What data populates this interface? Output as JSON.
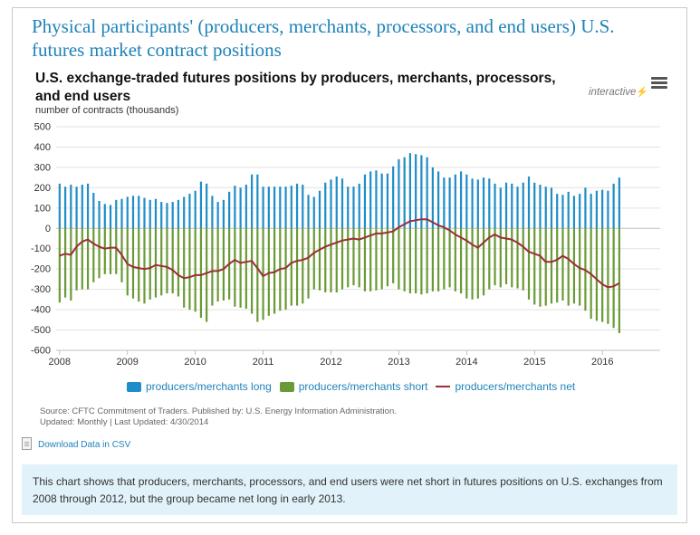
{
  "page": {
    "title": "Physical participants' (producers, merchants, processors, and end users) U.S. futures market contract positions",
    "interactive_label": "interactive",
    "download_label": "Download Data in CSV",
    "source_line1": "Source: CFTC Commitment of Traders. Published by: U.S. Energy Information Administration.",
    "source_line2": "Updated: Monthly | Last Updated: 4/30/2014",
    "caption": "This chart shows that producers, merchants, processors, and end users were net short in futures positions on U.S. exchanges from 2008 through 2012, but the group became net long in early 2013."
  },
  "icons": {
    "menu": "hamburger-menu-icon",
    "bolt": "lightning-bolt-icon",
    "download": "document-icon"
  },
  "colors": {
    "title": "#1f82b9",
    "long": "#1f8dc7",
    "short": "#6a9a36",
    "net": "#9b2f34",
    "caption_bg": "#e2f2fa"
  },
  "chart_data": {
    "type": "bar",
    "title": "U.S. exchange-traded futures positions by producers, merchants, processors, and end users",
    "subtitle": "number of contracts (thousands)",
    "ylim": [
      -600,
      500
    ],
    "yticks": [
      500,
      400,
      300,
      200,
      100,
      0,
      -100,
      -200,
      -300,
      -400,
      -500,
      -600
    ],
    "xlim": [
      2007.95,
      2016.85
    ],
    "xticks": [
      2008,
      2009,
      2010,
      2011,
      2012,
      2013,
      2014,
      2015,
      2016
    ],
    "grid": true,
    "legend_position": "bottom",
    "start_year": 2008,
    "step_years": 0.0833,
    "series": [
      {
        "name": "producers/merchants long",
        "type": "bar",
        "values": [
          220,
          205,
          215,
          205,
          215,
          220,
          175,
          135,
          120,
          115,
          140,
          145,
          155,
          160,
          160,
          150,
          140,
          145,
          130,
          125,
          130,
          140,
          155,
          170,
          185,
          230,
          220,
          160,
          130,
          140,
          180,
          210,
          200,
          215,
          265,
          265,
          205,
          205,
          205,
          205,
          205,
          210,
          220,
          215,
          165,
          155,
          185,
          225,
          240,
          255,
          245,
          205,
          205,
          220,
          265,
          280,
          285,
          270,
          270,
          305,
          340,
          350,
          370,
          365,
          360,
          350,
          300,
          280,
          250,
          250,
          265,
          280,
          265,
          245,
          240,
          250,
          245,
          220,
          200,
          225,
          220,
          205,
          225,
          255,
          225,
          215,
          205,
          200,
          170,
          165,
          180,
          160,
          170,
          200,
          170,
          185,
          190,
          185,
          220,
          250
        ]
      },
      {
        "name": "producers/merchants short",
        "type": "bar",
        "values": [
          -365,
          -340,
          -355,
          -305,
          -300,
          -300,
          -265,
          -245,
          -225,
          -225,
          -225,
          -265,
          -330,
          -345,
          -360,
          -370,
          -350,
          -340,
          -330,
          -320,
          -320,
          -335,
          -390,
          -400,
          -410,
          -440,
          -460,
          -380,
          -360,
          -355,
          -350,
          -385,
          -390,
          -395,
          -420,
          -460,
          -450,
          -430,
          -420,
          -405,
          -400,
          -380,
          -380,
          -370,
          -345,
          -300,
          -305,
          -315,
          -315,
          -315,
          -300,
          -290,
          -280,
          -290,
          -310,
          -310,
          -305,
          -300,
          -285,
          -270,
          -300,
          -310,
          -320,
          -320,
          -325,
          -320,
          -310,
          -310,
          -300,
          -290,
          -310,
          -320,
          -345,
          -350,
          -345,
          -330,
          -300,
          -280,
          -290,
          -275,
          -290,
          -295,
          -305,
          -350,
          -375,
          -385,
          -380,
          -370,
          -365,
          -355,
          -380,
          -370,
          -380,
          -405,
          -445,
          -455,
          -460,
          -470,
          -490,
          -515
        ]
      },
      {
        "name": "producers/merchants net",
        "type": "line",
        "values": [
          -135,
          -125,
          -130,
          -90,
          -65,
          -55,
          -75,
          -90,
          -100,
          -95,
          -95,
          -130,
          -175,
          -190,
          -195,
          -200,
          -195,
          -180,
          -185,
          -190,
          -205,
          -230,
          -245,
          -240,
          -230,
          -230,
          -220,
          -210,
          -210,
          -200,
          -175,
          -155,
          -170,
          -165,
          -160,
          -195,
          -235,
          -220,
          -215,
          -200,
          -195,
          -170,
          -160,
          -155,
          -145,
          -120,
          -105,
          -90,
          -80,
          -70,
          -60,
          -55,
          -50,
          -55,
          -45,
          -35,
          -25,
          -25,
          -20,
          -15,
          5,
          20,
          35,
          40,
          45,
          45,
          30,
          15,
          5,
          -10,
          -30,
          -45,
          -60,
          -80,
          -95,
          -70,
          -45,
          -30,
          -45,
          -50,
          -55,
          -70,
          -90,
          -115,
          -125,
          -135,
          -165,
          -165,
          -155,
          -135,
          -150,
          -175,
          -195,
          -205,
          -225,
          -250,
          -275,
          -290,
          -285,
          -270
        ]
      }
    ]
  }
}
